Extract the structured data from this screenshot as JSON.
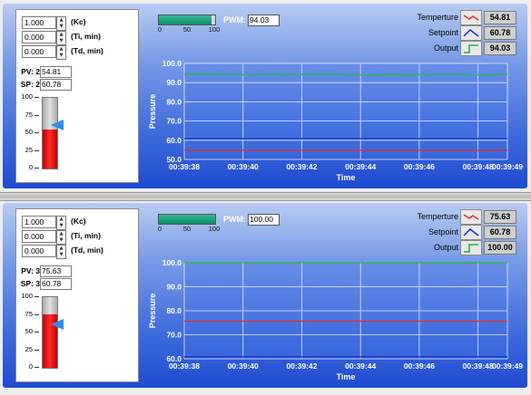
{
  "loops": [
    {
      "kc": {
        "value": "1.000",
        "label": "(Kc)"
      },
      "ti": {
        "value": "0.000",
        "label": "(Ti, min)"
      },
      "td": {
        "value": "0.000",
        "label": "(Td, min)"
      },
      "pv": {
        "label": "PV: 2",
        "value": "54.81"
      },
      "sp": {
        "label": "SP: 2",
        "value": "60.78"
      },
      "tank": {
        "ticks": [
          "100",
          "75",
          "50",
          "25",
          "0"
        ],
        "fill_percent": 54.81,
        "setpoint_percent": 60.78
      },
      "pwm": {
        "label": "PWM:",
        "value": "94.03",
        "fill_percent": 94.03,
        "ticks": [
          "0",
          "50",
          "100"
        ]
      },
      "legend": [
        {
          "label": "Temperture",
          "value": "54.81",
          "icon": "red-line-swatch-icon",
          "color": "#d83030"
        },
        {
          "label": "Setpoint",
          "value": "60.78",
          "icon": "blue-line-swatch-icon",
          "color": "#1030c8"
        },
        {
          "label": "Output",
          "value": "94.03",
          "icon": "green-step-swatch-icon",
          "color": "#20b040"
        }
      ],
      "chart_data": {
        "type": "line",
        "xlabel": "Time",
        "ylabel": "Pressure",
        "ylim": [
          50,
          100
        ],
        "yticks": [
          "100.0",
          "90.0",
          "80.0",
          "70.0",
          "60.0",
          "50.0"
        ],
        "xticks": [
          "00:39:38",
          "00:39:40",
          "00:39:42",
          "00:39:44",
          "00:39:46",
          "00:39:48",
          "00:39:49"
        ],
        "xtick_seconds": [
          38,
          40,
          42,
          44,
          46,
          48,
          49
        ],
        "grid": true,
        "series": [
          {
            "color": "#20c040",
            "x": [
              38,
              39,
              40,
              41,
              42,
              43,
              44,
              45,
              46,
              47,
              48,
              49
            ],
            "y": [
              94.2,
              94.6,
              94.1,
              94.4,
              94.3,
              94.5,
              94.0,
              94.3,
              94.2,
              94.4,
              94.1,
              94.3
            ]
          },
          {
            "color": "#1030c8",
            "x": [
              38,
              49
            ],
            "y": [
              60.78,
              60.78
            ]
          },
          {
            "color": "#d83030",
            "x": [
              38,
              49
            ],
            "y": [
              54.81,
              54.81
            ]
          }
        ]
      }
    },
    {
      "kc": {
        "value": "1.000",
        "label": "(Kc)"
      },
      "ti": {
        "value": "0.000",
        "label": "(Ti, min)"
      },
      "td": {
        "value": "0.000",
        "label": "(Td, min)"
      },
      "pv": {
        "label": "PV: 3",
        "value": "75.63"
      },
      "sp": {
        "label": "SP: 3",
        "value": "60.78"
      },
      "tank": {
        "ticks": [
          "100",
          "75",
          "50",
          "25",
          "0"
        ],
        "fill_percent": 75.63,
        "setpoint_percent": 60.78
      },
      "pwm": {
        "label": "PWM:",
        "value": "100.00",
        "fill_percent": 100,
        "ticks": [
          "0",
          "50",
          "100"
        ]
      },
      "legend": [
        {
          "label": "Temperture",
          "value": "75.63",
          "icon": "red-line-swatch-icon",
          "color": "#d83030"
        },
        {
          "label": "Setpoint",
          "value": "60.78",
          "icon": "blue-line-swatch-icon",
          "color": "#1030c8"
        },
        {
          "label": "Output",
          "value": "100.00",
          "icon": "green-step-swatch-icon",
          "color": "#20b040"
        }
      ],
      "chart_data": {
        "type": "line",
        "xlabel": "Time",
        "ylabel": "Pressure",
        "ylim": [
          60,
          100
        ],
        "yticks": [
          "100.0",
          "90.0",
          "80.0",
          "70.0",
          "60.0"
        ],
        "xticks": [
          "00:39:38",
          "00:39:40",
          "00:39:42",
          "00:39:44",
          "00:39:46",
          "00:39:48",
          "00:39:49"
        ],
        "xtick_seconds": [
          38,
          40,
          42,
          44,
          46,
          48,
          49
        ],
        "grid": true,
        "series": [
          {
            "color": "#20c040",
            "x": [
              38,
              49
            ],
            "y": [
              100,
              100
            ]
          },
          {
            "color": "#1030c8",
            "x": [
              38,
              49
            ],
            "y": [
              60.78,
              60.78
            ]
          },
          {
            "color": "#d83030",
            "x": [
              38,
              49
            ],
            "y": [
              75.63,
              75.63
            ]
          }
        ]
      }
    }
  ]
}
